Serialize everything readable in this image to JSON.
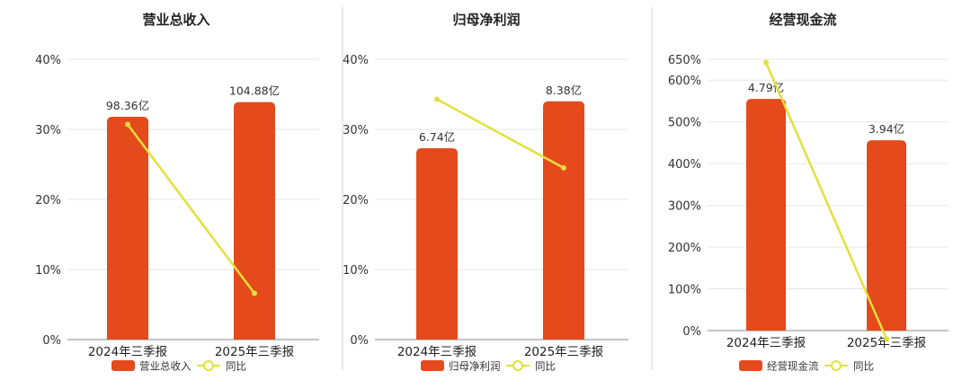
{
  "chart_data": [
    {
      "type": "bar",
      "title": "营业总收入",
      "categories": [
        "2024年三季报",
        "2025年三季报"
      ],
      "series": [
        {
          "name": "营业总收入",
          "type": "bar",
          "values": [
            31.8,
            33.9
          ],
          "labels": [
            "98.36亿",
            "104.88亿"
          ]
        },
        {
          "name": "同比",
          "type": "line",
          "values": [
            30.7,
            6.6
          ]
        }
      ],
      "ylim": [
        0,
        40
      ],
      "yticks": [
        "0%",
        "10%",
        "20%",
        "30%",
        "40%"
      ],
      "grid": true,
      "legend": "bottom",
      "colors": {
        "bar": "#e44a1b",
        "line": "#e2e03c"
      }
    },
    {
      "type": "bar",
      "title": "归母净利润",
      "categories": [
        "2024年三季报",
        "2025年三季报"
      ],
      "series": [
        {
          "name": "归母净利润",
          "type": "bar",
          "values": [
            27.3,
            34.0
          ],
          "labels": [
            "6.74亿",
            "8.38亿"
          ]
        },
        {
          "name": "同比",
          "type": "line",
          "values": [
            34.3,
            24.5
          ]
        }
      ],
      "ylim": [
        0,
        40
      ],
      "yticks": [
        "0%",
        "10%",
        "20%",
        "30%",
        "40%"
      ],
      "grid": true,
      "legend": "bottom",
      "colors": {
        "bar": "#e44a1b",
        "line": "#e2e03c"
      }
    },
    {
      "type": "bar",
      "title": "经营现金流",
      "categories": [
        "2024年三季报",
        "2025年三季报"
      ],
      "series": [
        {
          "name": "经营现金流",
          "type": "bar",
          "values": [
            555,
            456
          ],
          "labels": [
            "4.79亿",
            "3.94亿"
          ]
        },
        {
          "name": "同比",
          "type": "line",
          "values": [
            642,
            -20
          ]
        }
      ],
      "ylim": [
        0,
        650
      ],
      "yticks": [
        "0%",
        "100%",
        "200%",
        "300%",
        "400%",
        "500%",
        "600%",
        "650%"
      ],
      "ytick_values": [
        0,
        100,
        200,
        300,
        400,
        500,
        600,
        650
      ],
      "grid": true,
      "legend": "bottom",
      "colors": {
        "bar": "#e44a1b",
        "line": "#e2e03c"
      }
    }
  ]
}
